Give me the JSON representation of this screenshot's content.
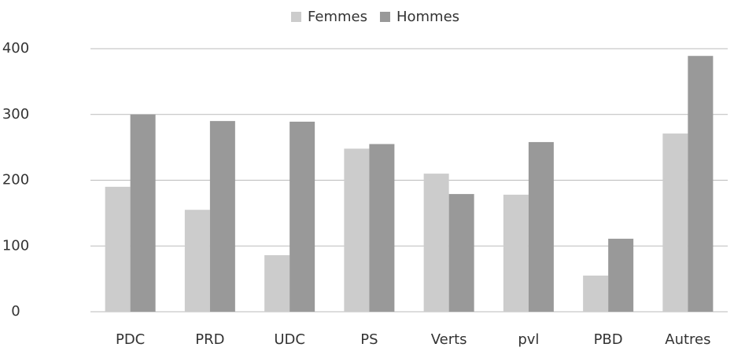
{
  "chart_data": {
    "type": "bar",
    "categories": [
      "PDC",
      "PRD",
      "UDC",
      "PS",
      "Verts",
      "pvl",
      "PBD",
      "Autres"
    ],
    "series": [
      {
        "name": "Femmes",
        "color": "#cccccc",
        "values": [
          190,
          155,
          86,
          248,
          210,
          178,
          55,
          271
        ]
      },
      {
        "name": "Hommes",
        "color": "#999999",
        "values": [
          300,
          290,
          289,
          255,
          179,
          258,
          111,
          389
        ]
      }
    ],
    "ylim": [
      0,
      400
    ],
    "yticks": [
      0,
      100,
      200,
      300,
      400
    ],
    "grid": true,
    "legend": "top"
  }
}
